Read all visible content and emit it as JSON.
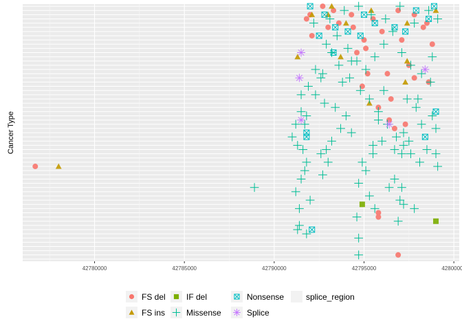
{
  "chart_data": {
    "type": "scatter",
    "title": "",
    "xlabel": "",
    "ylabel": "Cancer Type",
    "xlim": [
      42776000,
      42800300
    ],
    "ylim": [
      0,
      61
    ],
    "x_ticks": [
      42780000,
      42785000,
      42790000,
      42795000,
      42800000
    ],
    "x_tick_labels": [
      "42780000",
      "42785000",
      "42790000",
      "42795000",
      "42800000"
    ],
    "y_row_count": 61,
    "grid": true,
    "legend": {
      "position": "bottom",
      "entries": [
        {
          "name": "FS del",
          "shape": "circle",
          "color": "#F8766D"
        },
        {
          "name": "IF del",
          "shape": "square",
          "color": "#7CAE00"
        },
        {
          "name": "Nonsense",
          "shape": "square-x",
          "color": "#00BFC4"
        },
        {
          "name": "splice_region",
          "shape": "none",
          "color": "#F0F0F0"
        },
        {
          "name": "FS ins",
          "shape": "triangle",
          "color": "#C49A00"
        },
        {
          "name": "Missense",
          "shape": "plus",
          "color": "#00BE96"
        },
        {
          "name": "Splice",
          "shape": "asterisk",
          "color": "#C77CFF"
        }
      ]
    },
    "series": [
      {
        "name": "FS del",
        "shape": "circle",
        "color": "#F8766D",
        "points": [
          [
            42776700,
            23
          ],
          [
            42792700,
            61
          ],
          [
            42793300,
            60
          ],
          [
            42794300,
            59
          ],
          [
            42795500,
            58
          ],
          [
            42796900,
            60
          ],
          [
            42797800,
            59
          ],
          [
            42798500,
            57
          ],
          [
            42793000,
            56
          ],
          [
            42796000,
            55
          ],
          [
            42797100,
            53
          ],
          [
            42792100,
            54
          ],
          [
            42798800,
            52
          ],
          [
            42795100,
            51
          ],
          [
            42794600,
            50
          ],
          [
            42797500,
            47
          ],
          [
            42796300,
            45
          ],
          [
            42797800,
            44
          ],
          [
            42798600,
            43
          ],
          [
            42796500,
            39
          ],
          [
            42795800,
            37
          ],
          [
            42796400,
            34
          ],
          [
            42797300,
            33
          ],
          [
            42796700,
            32
          ],
          [
            42795200,
            45
          ],
          [
            42794900,
            42
          ],
          [
            42795800,
            11
          ],
          [
            42795800,
            12
          ],
          [
            42796900,
            2
          ],
          [
            42798300,
            56
          ],
          [
            42791800,
            58
          ],
          [
            42795000,
            53
          ],
          [
            42794400,
            56
          ],
          [
            42792000,
            59
          ],
          [
            42793600,
            57
          ]
        ]
      },
      {
        "name": "FS ins",
        "shape": "triangle",
        "color": "#C49A00",
        "points": [
          [
            42778000,
            23
          ],
          [
            42791300,
            49
          ],
          [
            42792100,
            59
          ],
          [
            42793200,
            61
          ],
          [
            42794000,
            57
          ],
          [
            42795400,
            60
          ],
          [
            42797400,
            57
          ],
          [
            42799000,
            60
          ],
          [
            42797400,
            48
          ],
          [
            42793700,
            49
          ],
          [
            42795300,
            38
          ],
          [
            42797300,
            43
          ],
          [
            42793000,
            59
          ]
        ]
      },
      {
        "name": "IF del",
        "shape": "square",
        "color": "#7CAE00",
        "points": [
          [
            42794900,
            14
          ],
          [
            42799000,
            10
          ]
        ]
      },
      {
        "name": "Nonsense",
        "shape": "square-x",
        "color": "#00BFC4",
        "points": [
          [
            42792000,
            61
          ],
          [
            42792800,
            59
          ],
          [
            42793400,
            56
          ],
          [
            42794100,
            55
          ],
          [
            42794800,
            54
          ],
          [
            42795600,
            57
          ],
          [
            42796700,
            56
          ],
          [
            42797300,
            55
          ],
          [
            42797900,
            60
          ],
          [
            42798600,
            58
          ],
          [
            42792500,
            54
          ],
          [
            42793300,
            50
          ],
          [
            42799000,
            36
          ],
          [
            42798400,
            30
          ],
          [
            42791800,
            30
          ],
          [
            42791800,
            31
          ],
          [
            42792100,
            8
          ],
          [
            42795000,
            59
          ],
          [
            42798900,
            61
          ]
        ]
      },
      {
        "name": "Missense",
        "shape": "plus",
        "color": "#00BE96",
        "points": [
          [
            42788900,
            18
          ],
          [
            42791000,
            30
          ],
          [
            42791300,
            28
          ],
          [
            42791600,
            27
          ],
          [
            42791800,
            24
          ],
          [
            42791700,
            22
          ],
          [
            42791500,
            20
          ],
          [
            42791200,
            17
          ],
          [
            42792000,
            15
          ],
          [
            42791400,
            13
          ],
          [
            42791300,
            8
          ],
          [
            42791800,
            7
          ],
          [
            42791500,
            40
          ],
          [
            42791900,
            42
          ],
          [
            42792300,
            46
          ],
          [
            42792600,
            44
          ],
          [
            42793200,
            50
          ],
          [
            42793600,
            47
          ],
          [
            42794200,
            44
          ],
          [
            42794800,
            41
          ],
          [
            42795300,
            39
          ],
          [
            42795800,
            36
          ],
          [
            42796300,
            33
          ],
          [
            42796800,
            30
          ],
          [
            42797200,
            28
          ],
          [
            42797600,
            26
          ],
          [
            42798100,
            24
          ],
          [
            42798500,
            27
          ],
          [
            42799100,
            23
          ],
          [
            42799000,
            26
          ],
          [
            42792900,
            52
          ],
          [
            42793500,
            54
          ],
          [
            42794100,
            51
          ],
          [
            42794600,
            48
          ],
          [
            42795100,
            46
          ],
          [
            42795600,
            49
          ],
          [
            42796100,
            52
          ],
          [
            42796600,
            55
          ],
          [
            42797100,
            50
          ],
          [
            42797600,
            47
          ],
          [
            42798200,
            45
          ],
          [
            42798800,
            49
          ],
          [
            42792200,
            57
          ],
          [
            42793100,
            58
          ],
          [
            42793900,
            60
          ],
          [
            42794700,
            61
          ],
          [
            42795400,
            59
          ],
          [
            42796200,
            58
          ],
          [
            42797000,
            61
          ],
          [
            42797800,
            57
          ],
          [
            42798600,
            60
          ],
          [
            42799100,
            58
          ],
          [
            42794900,
            24
          ],
          [
            42795500,
            26
          ],
          [
            42795100,
            22
          ],
          [
            42794700,
            19
          ],
          [
            42795300,
            16
          ],
          [
            42795600,
            13
          ],
          [
            42794600,
            11
          ],
          [
            42794700,
            6
          ],
          [
            42794700,
            2
          ],
          [
            42797000,
            15
          ],
          [
            42797200,
            14
          ],
          [
            42797800,
            13
          ],
          [
            42796400,
            18
          ],
          [
            42797100,
            18
          ],
          [
            42796700,
            20
          ],
          [
            42796900,
            10
          ],
          [
            42794300,
            31
          ],
          [
            42793700,
            32
          ],
          [
            42793200,
            29
          ],
          [
            42792900,
            27
          ],
          [
            42792600,
            26
          ],
          [
            42793000,
            24
          ],
          [
            42796000,
            29
          ],
          [
            42796700,
            27
          ],
          [
            42797100,
            26
          ],
          [
            42795500,
            28
          ],
          [
            42794000,
            35
          ],
          [
            42793400,
            37
          ],
          [
            42792800,
            38
          ],
          [
            42792300,
            40
          ],
          [
            42796100,
            41
          ],
          [
            42797400,
            39
          ],
          [
            42797900,
            37
          ],
          [
            42798800,
            35
          ],
          [
            42799000,
            32
          ],
          [
            42798200,
            33
          ],
          [
            42792700,
            45
          ],
          [
            42793800,
            43
          ],
          [
            42791700,
            33
          ],
          [
            42791800,
            35
          ],
          [
            42791500,
            36
          ],
          [
            42792700,
            21
          ],
          [
            42791400,
            9
          ],
          [
            42795800,
            34
          ],
          [
            42791200,
            33
          ],
          [
            42797200,
            31
          ],
          [
            42797500,
            29
          ],
          [
            42798000,
            39
          ],
          [
            42798700,
            43
          ],
          [
            42794300,
            48
          ]
        ]
      },
      {
        "name": "Splice",
        "shape": "asterisk",
        "color": "#C77CFF",
        "points": [
          [
            42791500,
            50
          ],
          [
            42791400,
            44
          ],
          [
            42791500,
            34
          ],
          [
            42796400,
            33
          ],
          [
            42798400,
            46
          ]
        ]
      }
    ]
  }
}
